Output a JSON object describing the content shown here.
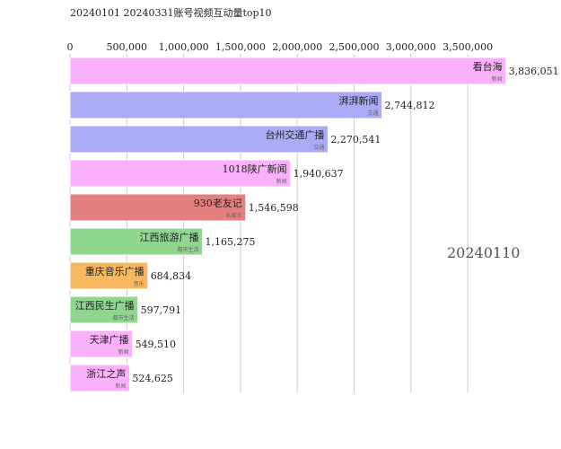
{
  "title": "20240101 20240331账号视频互动量top10",
  "chart_data": {
    "type": "bar",
    "orientation": "horizontal",
    "title": "20240101 20240331账号视频互动量top10",
    "date_label": "20240110",
    "xlim": [
      0,
      3900000
    ],
    "xticks": [
      0,
      500000,
      1000000,
      1500000,
      2000000,
      2500000,
      3000000,
      3500000
    ],
    "xtick_labels": [
      "0",
      "500,000",
      "1,000,000",
      "1,500,000",
      "2,000,000",
      "2,500,000",
      "3,000,000",
      "3,500,000"
    ],
    "grid": true,
    "categories": [
      "看台海",
      "湃湃新闻",
      "台州交通广播",
      "1018陕广新闻",
      "930老友记",
      "江西旅游广播",
      "重庆音乐广播",
      "江西民生广播",
      "天津广播",
      "浙江之声"
    ],
    "groups": [
      "新闻",
      "交通",
      "交通",
      "新闻",
      "私家车",
      "都市生活",
      "音乐",
      "都市生活",
      "新闻",
      "新闻"
    ],
    "values": [
      3836051,
      2744812,
      2270541,
      1940637,
      1546598,
      1165275,
      684834,
      597791,
      549510,
      524625
    ],
    "value_labels": [
      "3,836,051",
      "2,744,812",
      "2,270,541",
      "1,940,637",
      "1,546,598",
      "1,165,275",
      "684,834",
      "597,791",
      "549,510",
      "524,625"
    ],
    "group_colors": {
      "新闻": "#fbb0fb",
      "交通": "#aaaaf5",
      "私家车": "#e58080",
      "都市生活": "#8fd68f",
      "音乐": "#f7b860"
    }
  }
}
